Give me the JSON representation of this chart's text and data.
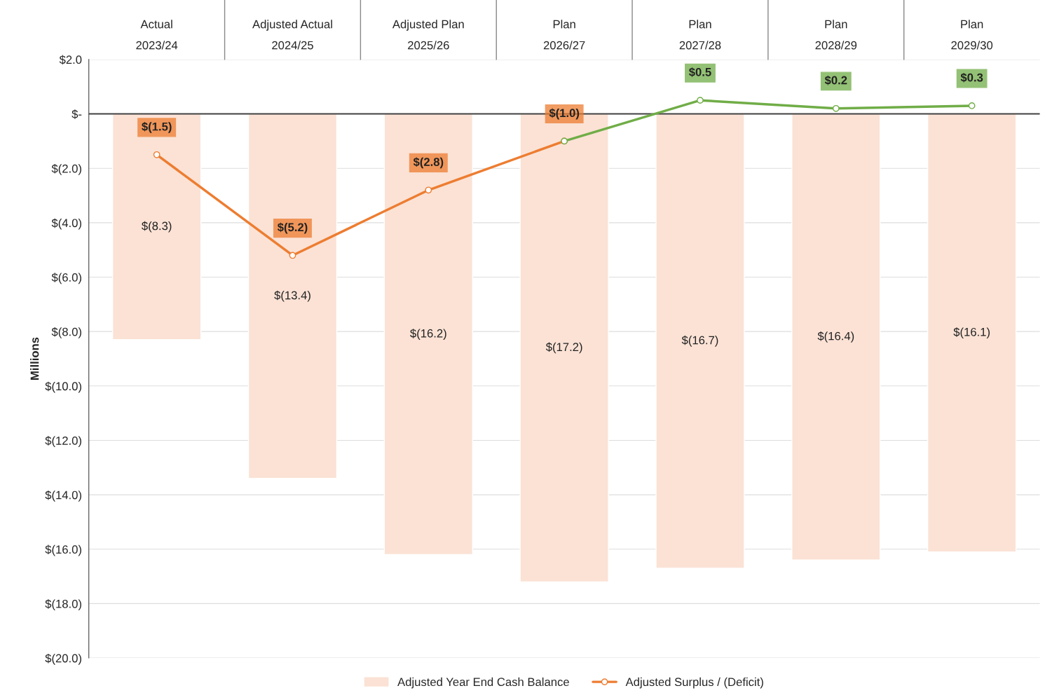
{
  "chart_data": {
    "type": "bar",
    "ylabel": "Millions",
    "categories": [
      "Actual\n2023/24",
      "Adjusted Actual\n2024/25",
      "Adjusted Plan\n2025/26",
      "Plan\n2026/27",
      "Plan\n2027/28",
      "Plan\n2028/29",
      "Plan\n2029/30"
    ],
    "series": [
      {
        "name": "Adjusted Year End Cash Balance",
        "color": "#fbe2d5",
        "values": [
          -8.3,
          -13.4,
          -16.2,
          -17.2,
          -16.7,
          -16.4,
          -16.1
        ],
        "value_labels": [
          "$(8.3)",
          "$(13.4)",
          "$(16.2)",
          "$(17.2)",
          "$(16.7)",
          "$(16.4)",
          "$(16.1)"
        ]
      },
      {
        "name": "Adjusted Surplus / (Deficit)",
        "type": "line",
        "color": "#ed7d31",
        "marker": "circle",
        "values": [
          -1.5,
          -5.2,
          -2.8,
          -1.0,
          null,
          null,
          null
        ],
        "value_labels": [
          "$(1.5)",
          "$(5.2)",
          "$(2.8)",
          "$(1.0)",
          null,
          null,
          null
        ]
      },
      {
        "type": "line",
        "color": "#70ad47",
        "marker": "circle",
        "values": [
          null,
          null,
          null,
          -1.0,
          0.5,
          0.2,
          0.3
        ],
        "value_labels": [
          null,
          null,
          null,
          null,
          "$0.5",
          "$0.2",
          "$0.3"
        ]
      }
    ],
    "ylim": [
      -20,
      2
    ],
    "yticks": [
      {
        "value": 2,
        "label": "$2.0"
      },
      {
        "value": 0,
        "label": "$-"
      },
      {
        "value": -2,
        "label": "$(2.0)"
      },
      {
        "value": -4,
        "label": "$(4.0)"
      },
      {
        "value": -6,
        "label": "$(6.0)"
      },
      {
        "value": -8,
        "label": "$(8.0)"
      },
      {
        "value": -10,
        "label": "$(10.0)"
      },
      {
        "value": -12,
        "label": "$(12.0)"
      },
      {
        "value": -14,
        "label": "$(14.0)"
      },
      {
        "value": -16,
        "label": "$(16.0)"
      },
      {
        "value": -18,
        "label": "$(18.0)"
      },
      {
        "value": -20,
        "label": "$(20.0)"
      }
    ],
    "ref_lines": [
      {
        "axis": "y",
        "value": 0,
        "color": "#404040"
      }
    ],
    "grid": "y",
    "legend": "bottom"
  }
}
